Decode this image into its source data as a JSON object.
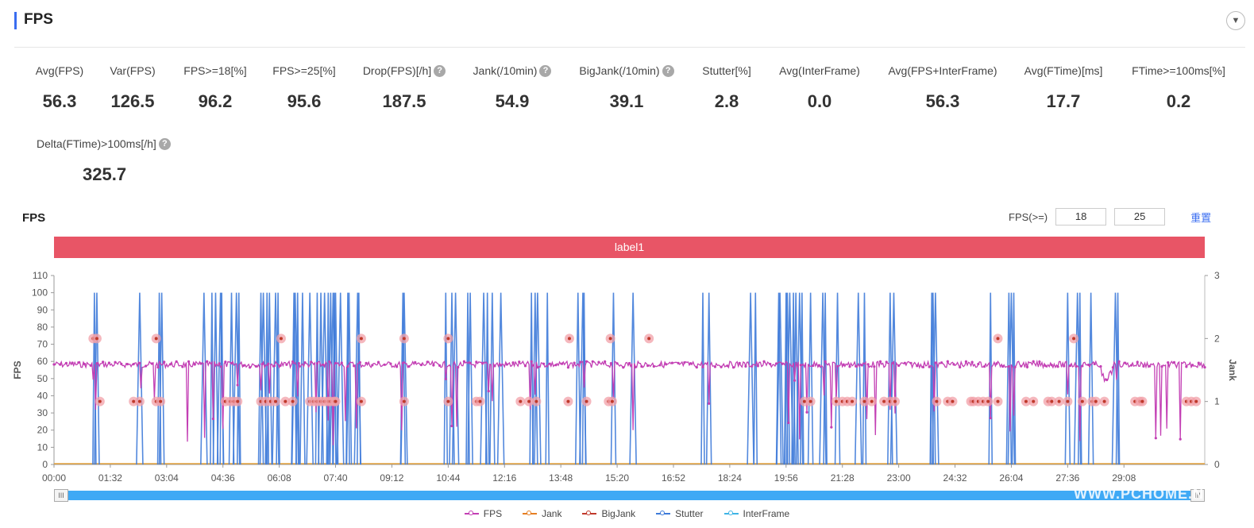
{
  "header": {
    "title": "FPS"
  },
  "metrics": [
    {
      "label": "Avg(FPS)",
      "value": "56.3",
      "help": false
    },
    {
      "label": "Var(FPS)",
      "value": "126.5",
      "help": false
    },
    {
      "label": "FPS>=18[%]",
      "value": "96.2",
      "help": false
    },
    {
      "label": "FPS>=25[%]",
      "value": "95.6",
      "help": false
    },
    {
      "label": "Drop(FPS)[/h]",
      "value": "187.5",
      "help": true
    },
    {
      "label": "Jank(/10min)",
      "value": "54.9",
      "help": true
    },
    {
      "label": "BigJank(/10min)",
      "value": "39.1",
      "help": true
    },
    {
      "label": "Stutter[%]",
      "value": "2.8",
      "help": false
    },
    {
      "label": "Avg(InterFrame)",
      "value": "0.0",
      "help": false
    },
    {
      "label": "Avg(FPS+InterFrame)",
      "value": "56.3",
      "help": false
    },
    {
      "label": "Avg(FTime)[ms]",
      "value": "17.7",
      "help": false
    },
    {
      "label": "FTime>=100ms[%]",
      "value": "0.2",
      "help": false
    },
    {
      "label": "Delta(FTime)>100ms[/h]",
      "value": "325.7",
      "help": true
    }
  ],
  "chart_section": {
    "title": "FPS",
    "filter_label": "FPS(>=)",
    "filter_low": "18",
    "filter_high": "25",
    "reset_label": "重置",
    "band_label": "label1",
    "help_glyph": "?",
    "collapse_glyph": "▼",
    "scroll_glyph": "III",
    "watermark": "WWW.PCHOME.N"
  },
  "chart_data": {
    "type": "line",
    "title": "",
    "ylabel": "FPS",
    "y2label": "Jank",
    "ylim": [
      0,
      110
    ],
    "y2lim": [
      0,
      3
    ],
    "yticks": [
      0,
      10,
      20,
      30,
      40,
      50,
      60,
      70,
      80,
      90,
      100,
      110
    ],
    "y2ticks": [
      0,
      1,
      2,
      3
    ],
    "x_range_seconds": [
      0,
      1880
    ],
    "xtick_labels": [
      "00:00",
      "01:32",
      "03:04",
      "04:36",
      "06:08",
      "07:40",
      "09:12",
      "10:44",
      "12:16",
      "13:48",
      "15:20",
      "16:52",
      "18:24",
      "19:56",
      "21:28",
      "23:00",
      "24:32",
      "26:04",
      "27:36",
      "29:08"
    ],
    "xtick_step_seconds": 92,
    "grid": false,
    "legend": "bottom",
    "series": [
      {
        "name": "FPS",
        "color": "#c33fb4",
        "baseline": 60,
        "noise": 1.8
      },
      {
        "name": "Jank",
        "color": "#e67e22",
        "baseline": 0
      },
      {
        "name": "BigJank",
        "color": "#c0392b",
        "baseline": 0
      },
      {
        "name": "Stutter",
        "color": "#3f7bd9",
        "spike_value": 100
      },
      {
        "name": "InterFrame",
        "color": "#3fb4e6",
        "baseline": 0
      }
    ],
    "stutter_spike_times_s": [
      66,
      70,
      140,
      172,
      176,
      245,
      258,
      264,
      272,
      274,
      290,
      298,
      302,
      338,
      342,
      348,
      352,
      362,
      366,
      392,
      394,
      398,
      406,
      418,
      430,
      436,
      442,
      448,
      452,
      456,
      458,
      460,
      468,
      480,
      482,
      496,
      498,
      570,
      572,
      640,
      650,
      656,
      676,
      680,
      702,
      708,
      716,
      730,
      780,
      786,
      790,
      806,
      856,
      864,
      866,
      914,
      946,
      1060,
      1070,
      1138,
      1146,
      1184,
      1186,
      1196,
      1198,
      1202,
      1208,
      1212,
      1218,
      1222,
      1236,
      1256,
      1260,
      1280,
      1314,
      1324,
      1366,
      1372,
      1434,
      1436,
      1440,
      1530,
      1560,
      1564,
      1568,
      1656,
      1672,
      1676,
      1694,
      1734,
      1738
    ],
    "fps_dip_times_s": [
      64,
      68,
      142,
      164,
      218,
      246,
      260,
      276,
      300,
      338,
      352,
      398,
      428,
      448,
      456,
      476,
      494,
      568,
      640,
      650,
      658,
      710,
      716,
      778,
      786,
      866,
      914,
      946,
      1070,
      1200,
      1210,
      1218,
      1230,
      1258,
      1270,
      1278,
      1328,
      1342,
      1366,
      1374,
      1438,
      1530,
      1562,
      1568,
      1656,
      1676,
      1736,
      1800,
      1808,
      1818,
      1840
    ],
    "jank_markers_2_times_s": [
      64,
      70,
      167,
      371,
      502,
      572,
      644,
      842,
      909,
      972,
      1542,
      1666
    ],
    "jank_markers_1_times_s": [
      75,
      130,
      140,
      167,
      174,
      280,
      288,
      294,
      300,
      338,
      346,
      354,
      362,
      378,
      390,
      418,
      424,
      430,
      436,
      442,
      448,
      452,
      458,
      460,
      502,
      572,
      644,
      690,
      696,
      762,
      776,
      788,
      840,
      870,
      906,
      912,
      1226,
      1236,
      1278,
      1288,
      1296,
      1304,
      1324,
      1336,
      1356,
      1366,
      1374,
      1442,
      1460,
      1468,
      1498,
      1502,
      1510,
      1518,
      1526,
      1542,
      1588,
      1600,
      1624,
      1630,
      1642,
      1656,
      1680,
      1696,
      1702,
      1716,
      1766,
      1774,
      1778,
      1850,
      1858,
      1866
    ]
  }
}
